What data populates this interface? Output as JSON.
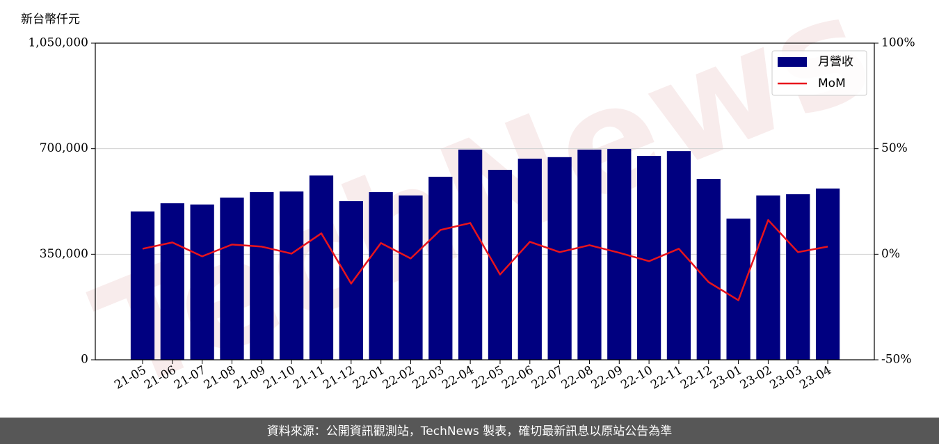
{
  "chart_data": {
    "type": "bar_line",
    "y_label": "新台幣仟元",
    "watermark": "TechNews",
    "footer": "資料來源：公開資訊觀測站，TechNews 製表，確切最新訊息以原站公告為準",
    "categories": [
      "21-05",
      "21-06",
      "21-07",
      "21-08",
      "21-09",
      "21-10",
      "21-11",
      "21-12",
      "22-01",
      "22-02",
      "22-03",
      "22-04",
      "22-05",
      "22-06",
      "22-07",
      "22-08",
      "22-09",
      "22-10",
      "22-11",
      "22-12",
      "23-01",
      "23-02",
      "23-03",
      "23-04"
    ],
    "series": [
      {
        "name": "月營收",
        "type": "bar",
        "color": "#000080",
        "values": [
          492000,
          519000,
          515000,
          538000,
          556000,
          558000,
          611000,
          526000,
          556000,
          545000,
          607000,
          697000,
          630000,
          667000,
          672000,
          697000,
          699000,
          676000,
          692000,
          600000,
          468000,
          545000,
          549000,
          568000
        ]
      },
      {
        "name": "MoM",
        "type": "line",
        "axis": "y2",
        "color": "#e8141c",
        "values": [
          2.6,
          5.6,
          -1.0,
          4.6,
          3.6,
          0.3,
          9.9,
          -13.9,
          5.3,
          -2.0,
          11.5,
          14.8,
          -9.6,
          5.9,
          1.0,
          4.3,
          0.7,
          -3.3,
          2.6,
          -13.2,
          -21.8,
          16.2,
          1.0,
          3.6
        ]
      }
    ],
    "ylim": [
      0,
      1050000
    ],
    "yticks": [
      {
        "value": 0,
        "label": "0"
      },
      {
        "value": 350000,
        "label": "350,000"
      },
      {
        "value": 700000,
        "label": "700,000"
      },
      {
        "value": 1050000,
        "label": "1,050,000"
      }
    ],
    "y2lim": [
      -50,
      100
    ],
    "y2ticks": [
      {
        "value": -50,
        "label": "-50%"
      },
      {
        "value": 0,
        "label": "0%"
      },
      {
        "value": 50,
        "label": "50%"
      },
      {
        "value": 100,
        "label": "100%"
      }
    ],
    "grid": true,
    "legend": "upper right"
  }
}
